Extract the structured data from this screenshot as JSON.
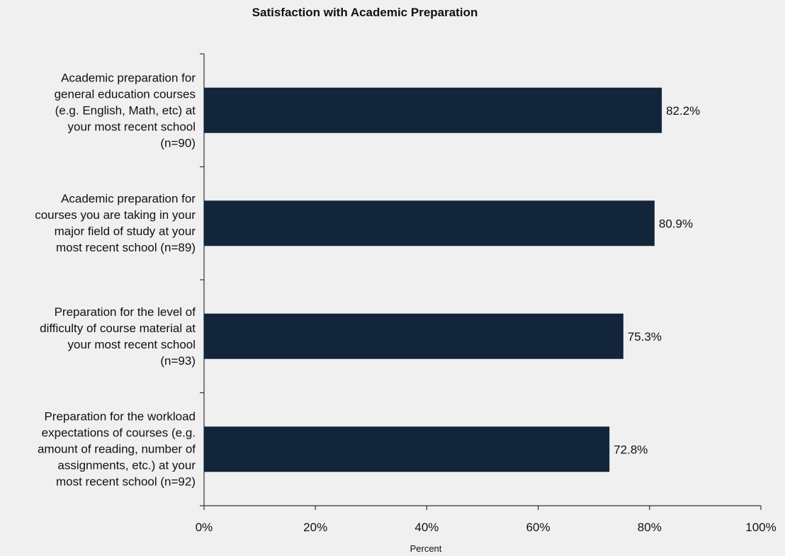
{
  "chart_data": {
    "type": "bar",
    "orientation": "horizontal",
    "title": "Satisfaction with Academic Preparation",
    "xlabel": "Percent",
    "ylabel": "",
    "xlim": [
      0,
      100
    ],
    "x_ticks": [
      "0%",
      "20%",
      "40%",
      "60%",
      "80%",
      "100%"
    ],
    "categories": [
      "Academic preparation for\ngeneral education courses\n(e.g. English, Math, etc) at\nyour most recent school\n(n=90)",
      "Academic preparation for\ncourses you are taking in your\nmajor field of study at your\nmost recent school (n=89)",
      "Preparation for the level of\ndifficulty of course material at\nyour most recent school\n(n=93)",
      "Preparation for the workload\nexpectations of courses (e.g.\namount of reading, number of\nassignments, etc.) at your\nmost recent school (n=92)"
    ],
    "values": [
      82.2,
      80.9,
      75.3,
      72.8
    ],
    "data_labels": [
      "82.2%",
      "80.9%",
      "75.3%",
      "72.8%"
    ],
    "bar_color": "#12253b",
    "grid": false,
    "legend": "none"
  }
}
